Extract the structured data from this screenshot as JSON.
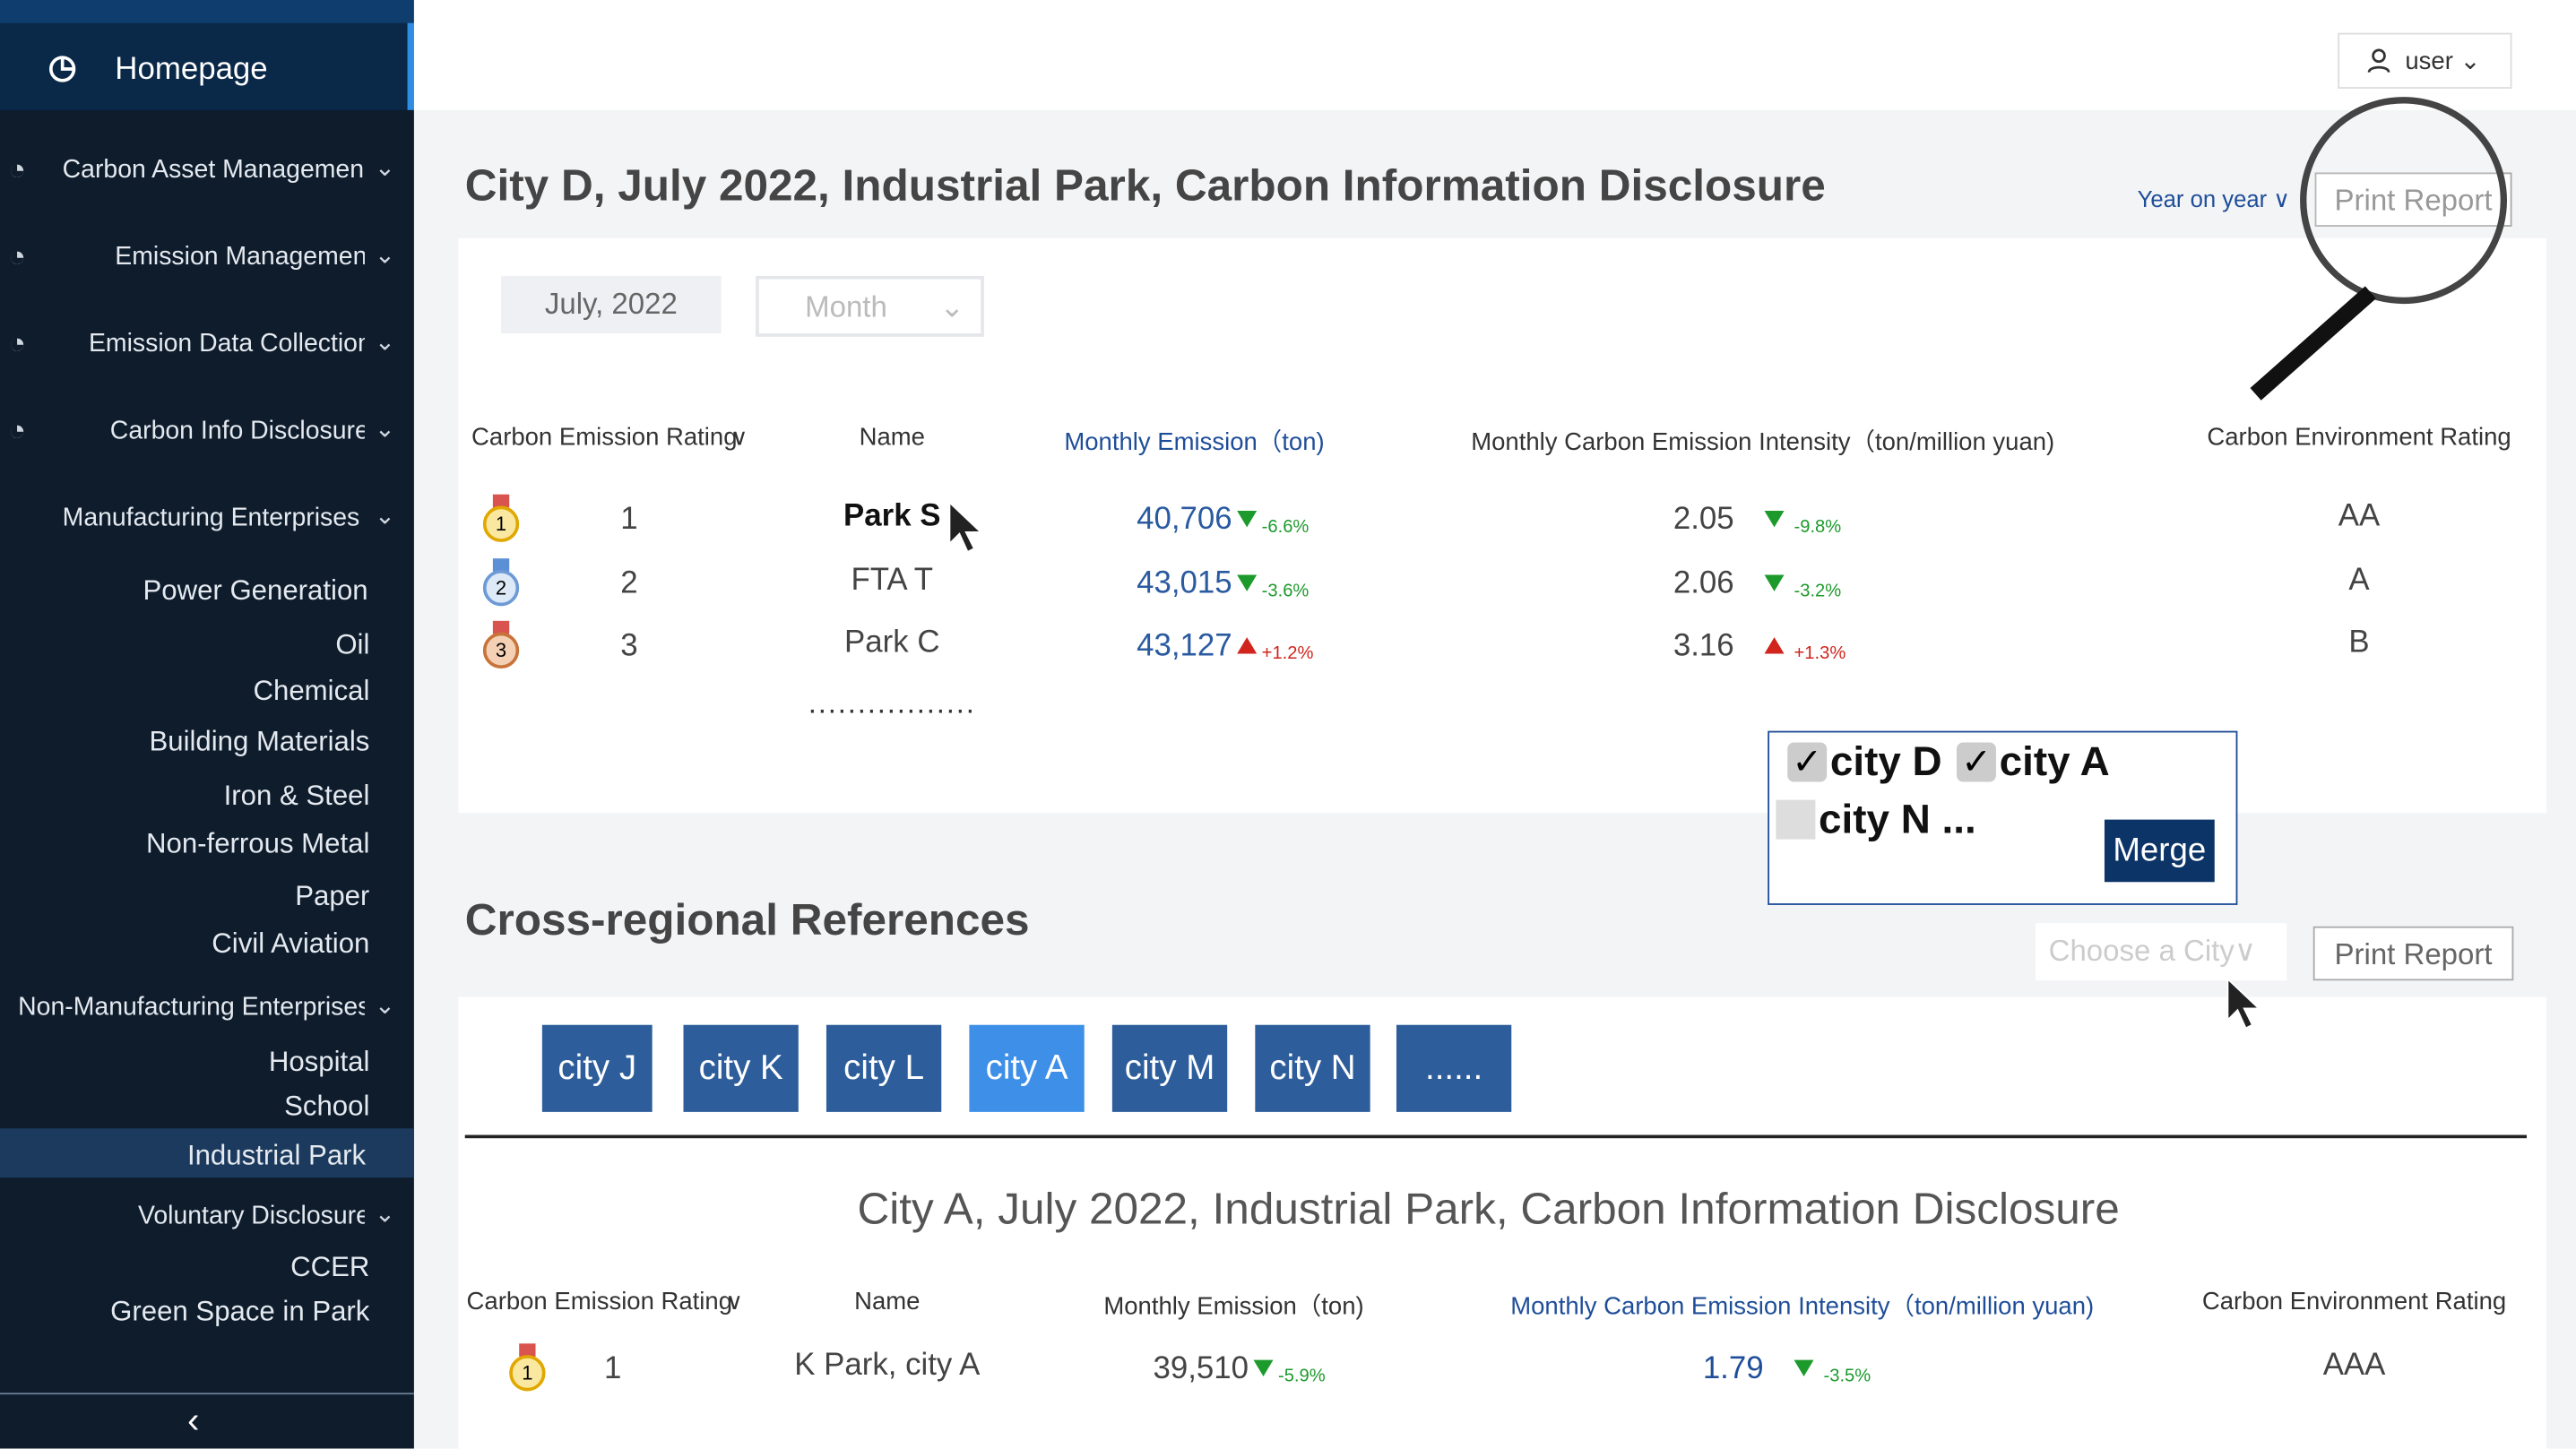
{
  "sidebar": {
    "home": "Homepage",
    "items": [
      {
        "text": "Carbon Asset Managemen"
      },
      {
        "text": "Emission Managemen"
      },
      {
        "text": "Emission Data Collection"
      },
      {
        "text": "Carbon Info Disclosure"
      },
      {
        "text": "Manufacturing Enterprises"
      },
      {
        "text": "Power Generation"
      },
      {
        "text": "Oil"
      },
      {
        "text": "Chemical"
      },
      {
        "text": "Building Materials"
      },
      {
        "text": "Iron & Steel"
      },
      {
        "text": "Non-ferrous Metal"
      },
      {
        "text": "Paper"
      },
      {
        "text": "Civil Aviation"
      },
      {
        "text": "Non-Manufacturing Enterprises"
      },
      {
        "text": "Hospital"
      },
      {
        "text": "School"
      },
      {
        "text": "Industrial Park"
      },
      {
        "text": "Voluntary Disclosure"
      },
      {
        "text": "CCER"
      },
      {
        "text": "Green Space in Park"
      }
    ]
  },
  "header": {
    "user": "user"
  },
  "disclosure": {
    "title": "City D, July 2022,  Industrial Park, Carbon Information Disclosure",
    "compare": "Year on year",
    "print": "Print Report",
    "date": "July, 2022",
    "period": "Month",
    "columns": [
      "Carbon Emission Rating",
      "Name",
      "Monthly Emission（ton)",
      "Monthly Carbon Emission Intensity（ton/million yuan)",
      "Carbon Environment Rating"
    ],
    "rows": [
      {
        "rank": "1",
        "name": "Park S",
        "emission": "40,706",
        "emission_change": "-6.6%",
        "intensity": "2.05",
        "intensity_change": "-9.8%",
        "rating": "AA"
      },
      {
        "rank": "2",
        "name": "FTA T",
        "emission": "43,015",
        "emission_change": "-3.6%",
        "intensity": "2.06",
        "intensity_change": "-3.2%",
        "rating": "A"
      },
      {
        "rank": "3",
        "name": "Park C",
        "emission": "43,127",
        "emission_change": "+1.2%",
        "intensity": "3.16",
        "intensity_change": "+1.3%",
        "rating": "B"
      }
    ],
    "more": "................."
  },
  "city_popup": {
    "options": [
      "city D",
      "city A",
      "city N ..."
    ],
    "button": "Merge"
  },
  "references": {
    "title": "Cross-regional References",
    "city_select": "Choose a City",
    "print": "Print Report",
    "cities": [
      "city J",
      "city K",
      "city L",
      "city A",
      "city M",
      "city N",
      "......"
    ],
    "disclosure": {
      "title": "City A, July 2022, Industrial Park, Carbon Information Disclosure",
      "columns": [
        "Carbon Emission Rating",
        "Name",
        "Monthly Emission（ton)",
        "Monthly Carbon Emission Intensity（ton/million yuan)",
        "Carbon Environment Rating"
      ],
      "rows": [
        {
          "rank": "1",
          "name": "K Park, city A",
          "emission": "39,510",
          "emission_change": "-5.9%",
          "intensity": "1.79",
          "intensity_change": "-3.5%",
          "rating": "AAA"
        }
      ]
    }
  }
}
